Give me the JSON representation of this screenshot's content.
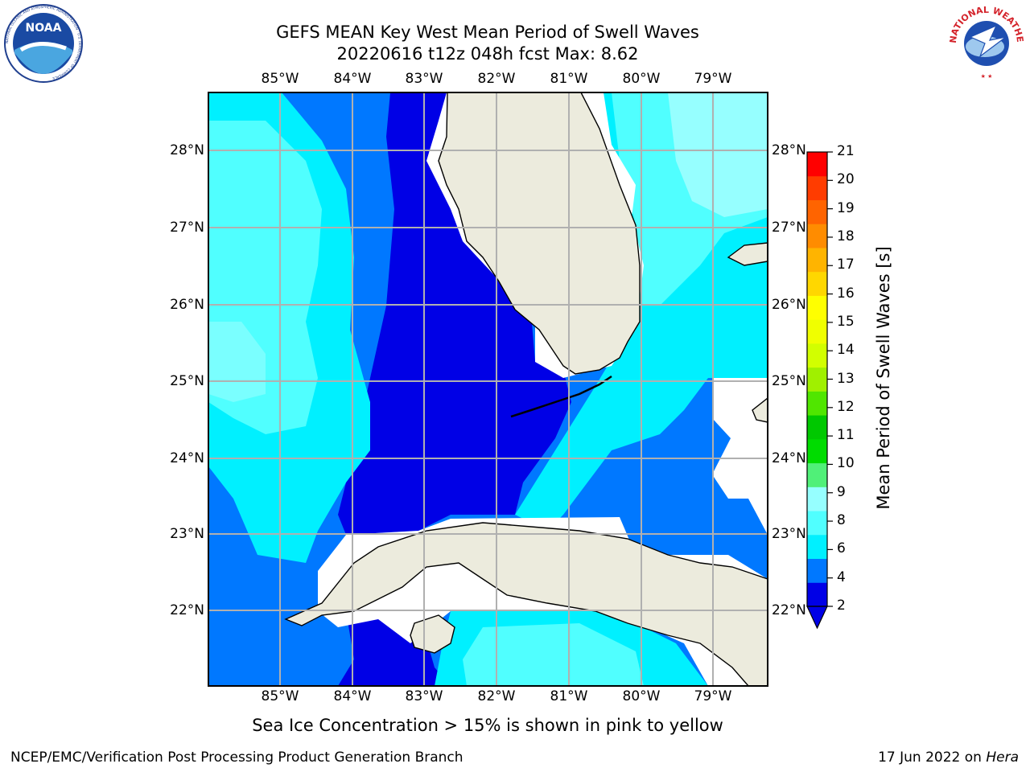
{
  "header": {
    "title_line1": "GEFS MEAN Key West Mean Period of Swell Waves",
    "title_line2": "20220616 t12z 048h fcst   Max: 8.62"
  },
  "logos": {
    "left": {
      "icon": "noaa-logo",
      "text": "NOAA",
      "ring_text": "NATIONAL OCEANIC AND ATMOSPHERIC ADMINISTRATION · U.S. DEPARTMENT OF COMMERCE"
    },
    "right": {
      "icon": "national-weather-service-logo",
      "ring_text": "NATIONAL WEATHER SERVICE"
    }
  },
  "map": {
    "lon_labels": [
      "85°W",
      "84°W",
      "83°W",
      "82°W",
      "81°W",
      "80°W",
      "79°W"
    ],
    "lat_labels": [
      "28°N",
      "27°N",
      "26°N",
      "25°N",
      "24°N",
      "23°N",
      "22°N"
    ],
    "colors": {
      "land": "#ecebdd",
      "coast": "#000000",
      "grid": "#b0b0b0",
      "missing": "#ffffff"
    }
  },
  "colorbar": {
    "label": "Mean Period of Swell Waves [s]",
    "ticks": [
      "21",
      "20",
      "19",
      "18",
      "17",
      "16",
      "15",
      "14",
      "13",
      "12",
      "11",
      "10",
      "9",
      "8",
      "6",
      "4",
      "2"
    ],
    "colors": [
      "#0000e6",
      "#0078ff",
      "#00f0ff",
      "#50ffff",
      "#96ffff",
      "#50f078",
      "#00dc00",
      "#00c800",
      "#50e600",
      "#a0f000",
      "#d2ff00",
      "#f0ff00",
      "#ffff00",
      "#ffd700",
      "#ffb400",
      "#ff8c00",
      "#ff6400",
      "#ff3c00",
      "#ff0000"
    ]
  },
  "note": "Sea Ice Concentration > 15% is shown in pink to yellow",
  "footer": {
    "left": "NCEP/EMC/Verification Post Processing Product Generation Branch",
    "right_prefix": "17 Jun 2022 on ",
    "right_machine": "Hera"
  }
}
